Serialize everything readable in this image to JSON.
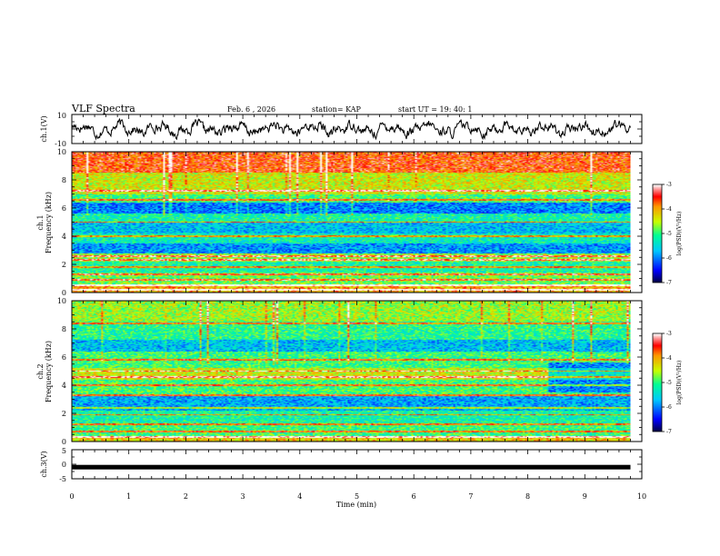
{
  "header": {
    "title": "VLF Spectra",
    "date": "Feb. 6 , 2026",
    "station": "station= KAP",
    "start_ut": "start  UT =   19: 40: 1"
  },
  "chart_data": [
    {
      "type": "line",
      "name": "ch1-waveform",
      "ylabel": "ch.1(V)",
      "ylim": [
        -10,
        10
      ],
      "yticks": [
        "10",
        "-10"
      ],
      "x_range_min": [
        0,
        9.8
      ],
      "series_note": "noisy waveform oscillating roughly between -6 and +6 V",
      "color": "#000000"
    },
    {
      "type": "heatmap",
      "name": "ch1-spectrogram",
      "ylabel_top": "ch.1",
      "ylabel": "Frequency  (kHz)",
      "ylim": [
        0,
        10
      ],
      "yticks": [
        "0",
        "2",
        "4",
        "6",
        "8",
        "10"
      ],
      "xlim": [
        0,
        10
      ],
      "data_extent_min": 9.8,
      "colorbar": {
        "label": "log(PSD)(V²/Hz)",
        "range": [
          -7,
          -3
        ],
        "ticks": [
          "-3",
          "-4",
          "-5",
          "-6",
          "-7"
        ]
      },
      "bands_khz": [
        {
          "f": [
            8.5,
            10
          ],
          "level": -3.6
        },
        {
          "f": [
            7.0,
            8.5
          ],
          "level": -4.4
        },
        {
          "f": [
            6.4,
            7.0
          ],
          "level": -5.0
        },
        {
          "f": [
            5.6,
            6.4
          ],
          "level": -6.0
        },
        {
          "f": [
            5.0,
            5.6
          ],
          "level": -5.2
        },
        {
          "f": [
            4.2,
            5.0
          ],
          "level": -5.7
        },
        {
          "f": [
            3.5,
            4.2
          ],
          "level": -5.3
        },
        {
          "f": [
            2.8,
            3.5
          ],
          "level": -5.9
        },
        {
          "f": [
            2.2,
            2.8
          ],
          "level": -4.6
        },
        {
          "f": [
            1.4,
            2.2
          ],
          "level": -5.2
        },
        {
          "f": [
            0.6,
            1.4
          ],
          "level": -4.8
        },
        {
          "f": [
            0.0,
            0.6
          ],
          "level": -4.0
        }
      ],
      "lines_khz": [
        0.2,
        0.5,
        0.9,
        1.3,
        1.8,
        2.3,
        2.6,
        4.0,
        5.0,
        6.6,
        7.2
      ]
    },
    {
      "type": "heatmap",
      "name": "ch2-spectrogram",
      "ylabel_top": "ch.2",
      "ylabel": "Frequency  (kHz)",
      "ylim": [
        0,
        10
      ],
      "yticks": [
        "0",
        "2",
        "4",
        "6",
        "8",
        "10"
      ],
      "xlim": [
        0,
        10
      ],
      "data_extent_min": 9.8,
      "colorbar": {
        "label": "log(PSD)(V²/Hz)",
        "range": [
          -7,
          -3
        ],
        "ticks": [
          "-3",
          "-4",
          "-5",
          "-6",
          "-7"
        ]
      },
      "bands_khz": [
        {
          "f": [
            8.5,
            10
          ],
          "level": -4.6
        },
        {
          "f": [
            7.2,
            8.5
          ],
          "level": -5.1
        },
        {
          "f": [
            6.4,
            7.2
          ],
          "level": -5.7
        },
        {
          "f": [
            5.2,
            6.4
          ],
          "level": -5.0
        },
        {
          "f": [
            4.4,
            5.2
          ],
          "level": -4.4
        },
        {
          "f": [
            3.2,
            4.4
          ],
          "level": -5.0
        },
        {
          "f": [
            2.2,
            3.2
          ],
          "level": -5.8
        },
        {
          "f": [
            1.2,
            2.2
          ],
          "level": -5.2
        },
        {
          "f": [
            0.4,
            1.2
          ],
          "level": -5.0
        },
        {
          "f": [
            0.0,
            0.4
          ],
          "level": -4.2
        }
      ],
      "lines_khz": [
        0.3,
        0.7,
        1.2,
        1.9,
        2.4,
        3.3,
        4.0,
        4.6,
        5.0,
        5.8,
        8.4
      ]
    },
    {
      "type": "line",
      "name": "ch3-waveform",
      "ylabel": "ch.3(V)",
      "ylim": [
        -5,
        5
      ],
      "yticks": [
        "5",
        "0",
        "-5"
      ],
      "constant_value": -1,
      "x_range_min": [
        0,
        9.8
      ],
      "color": "#000000"
    }
  ],
  "xaxis": {
    "label": "Time  (min)",
    "ticks": [
      "0",
      "1",
      "2",
      "3",
      "4",
      "5",
      "6",
      "7",
      "8",
      "9",
      "10"
    ]
  },
  "colors": {
    "frame": "#000000",
    "colormap": [
      "#00004a",
      "#0000ff",
      "#00c8ff",
      "#00ff96",
      "#c8ff00",
      "#ff9600",
      "#ff0000",
      "#ff8c8c",
      "#ffffff"
    ]
  }
}
